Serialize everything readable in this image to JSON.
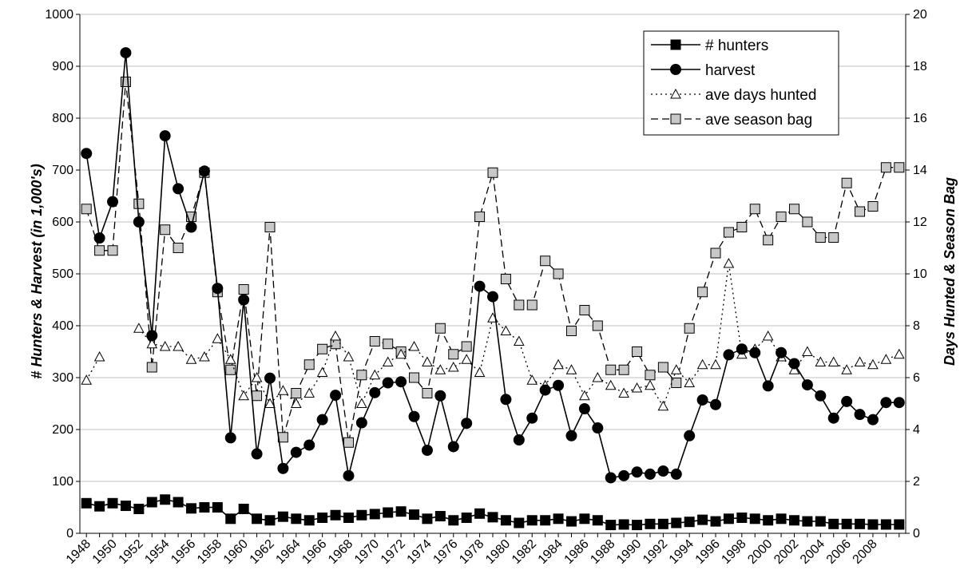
{
  "chart_data": {
    "type": "line",
    "title": "",
    "ylabel_left": "# Hunters & Harvest (in 1,000's)",
    "ylabel_right": "Days Hunted & Season Bag",
    "ylim_left": [
      0,
      1000
    ],
    "ylim_right": [
      0,
      20
    ],
    "yticks_left": [
      "0",
      "100",
      "200",
      "300",
      "400",
      "500",
      "600",
      "700",
      "800",
      "900",
      "1000"
    ],
    "yticks_right": [
      "0",
      "2",
      "4",
      "6",
      "8",
      "10",
      "12",
      "14",
      "16",
      "18",
      "20"
    ],
    "xticks": [
      "1948",
      "1950",
      "1952",
      "1954",
      "1956",
      "1958",
      "1960",
      "1962",
      "1964",
      "1966",
      "1968",
      "1970",
      "1972",
      "1974",
      "1976",
      "1978",
      "1980",
      "1982",
      "1984",
      "1986",
      "1988",
      "1990",
      "1992",
      "1994",
      "1996",
      "1998",
      "2000",
      "2002",
      "2004",
      "2006",
      "2008"
    ],
    "grid": true,
    "legend_position": "top-right",
    "x": [
      1948,
      1949,
      1950,
      1951,
      1952,
      1953,
      1954,
      1955,
      1956,
      1957,
      1958,
      1959,
      1960,
      1961,
      1962,
      1963,
      1964,
      1965,
      1966,
      1967,
      1968,
      1969,
      1970,
      1971,
      1972,
      1973,
      1974,
      1975,
      1976,
      1977,
      1978,
      1979,
      1980,
      1981,
      1982,
      1983,
      1984,
      1985,
      1986,
      1987,
      1988,
      1989,
      1990,
      1991,
      1992,
      1993,
      1994,
      1995,
      1996,
      1997,
      1998,
      1999,
      2000,
      2001,
      2002,
      2003,
      2004,
      2005,
      2006,
      2007,
      2008,
      2009,
      2010
    ],
    "series": [
      {
        "name": "# hunters",
        "axis": "left",
        "style": "solid",
        "marker": "square-black",
        "values": [
          58,
          52,
          58,
          53,
          47,
          60,
          65,
          60,
          48,
          50,
          50,
          28,
          47,
          28,
          25,
          32,
          28,
          25,
          30,
          35,
          30,
          35,
          37,
          40,
          42,
          36,
          28,
          33,
          25,
          30,
          38,
          31,
          25,
          20,
          25,
          25,
          28,
          23,
          28,
          25,
          16,
          17,
          16,
          18,
          18,
          20,
          22,
          26,
          23,
          28,
          30,
          28,
          25,
          28,
          25,
          23,
          23,
          18,
          18,
          18,
          17,
          17,
          17
        ]
      },
      {
        "name": "harvest",
        "axis": "left",
        "style": "solid",
        "marker": "circle-black",
        "values": [
          732,
          569,
          639,
          926,
          600,
          381,
          766,
          664,
          590,
          698,
          472,
          184,
          450,
          153,
          299,
          125,
          156,
          170,
          219,
          266,
          111,
          213,
          271,
          290,
          292,
          225,
          160,
          265,
          167,
          212,
          476,
          456,
          258,
          180,
          222,
          276,
          285,
          188,
          240,
          203,
          107,
          111,
          118,
          114,
          120,
          114,
          188,
          257,
          248,
          344,
          355,
          348,
          284,
          348,
          327,
          286,
          265,
          222,
          254,
          229,
          219,
          252,
          252
        ]
      },
      {
        "name": "ave days hunted",
        "axis": "right",
        "style": "dotted",
        "marker": "triangle-open",
        "values": [
          5.9,
          6.8,
          null,
          null,
          7.9,
          7.3,
          7.2,
          7.2,
          6.7,
          6.8,
          7.5,
          6.7,
          5.3,
          6.0,
          5.0,
          5.5,
          5.0,
          5.4,
          6.2,
          7.6,
          6.8,
          5.0,
          6.1,
          6.6,
          6.9,
          7.2,
          6.6,
          6.3,
          6.4,
          6.7,
          6.2,
          8.3,
          7.8,
          7.4,
          5.9,
          5.7,
          6.5,
          6.3,
          5.3,
          6.0,
          5.7,
          5.4,
          5.6,
          5.7,
          4.9,
          6.3,
          5.8,
          6.5,
          6.5,
          10.4,
          6.9,
          7.1,
          7.6,
          6.8,
          6.3,
          7.0,
          6.6,
          6.6,
          6.3,
          6.6,
          6.5,
          6.7,
          6.9
        ]
      },
      {
        "name": "ave season bag",
        "axis": "right",
        "style": "dashed",
        "marker": "square-gray",
        "values": [
          12.5,
          10.9,
          10.9,
          17.4,
          12.7,
          6.4,
          11.7,
          11.0,
          12.2,
          13.9,
          9.3,
          6.3,
          9.4,
          5.3,
          11.8,
          3.7,
          5.4,
          6.5,
          7.1,
          7.3,
          3.5,
          6.1,
          7.4,
          7.3,
          7.0,
          6.0,
          5.4,
          7.9,
          6.9,
          7.2,
          12.2,
          13.9,
          9.8,
          8.8,
          8.8,
          10.5,
          10.0,
          7.8,
          8.6,
          8.0,
          6.3,
          6.3,
          7.0,
          6.1,
          6.4,
          5.8,
          7.9,
          9.3,
          10.8,
          11.6,
          11.8,
          12.5,
          11.3,
          12.2,
          12.5,
          12.0,
          11.4,
          11.4,
          13.5,
          12.4,
          12.6,
          14.1,
          14.1
        ]
      }
    ]
  }
}
